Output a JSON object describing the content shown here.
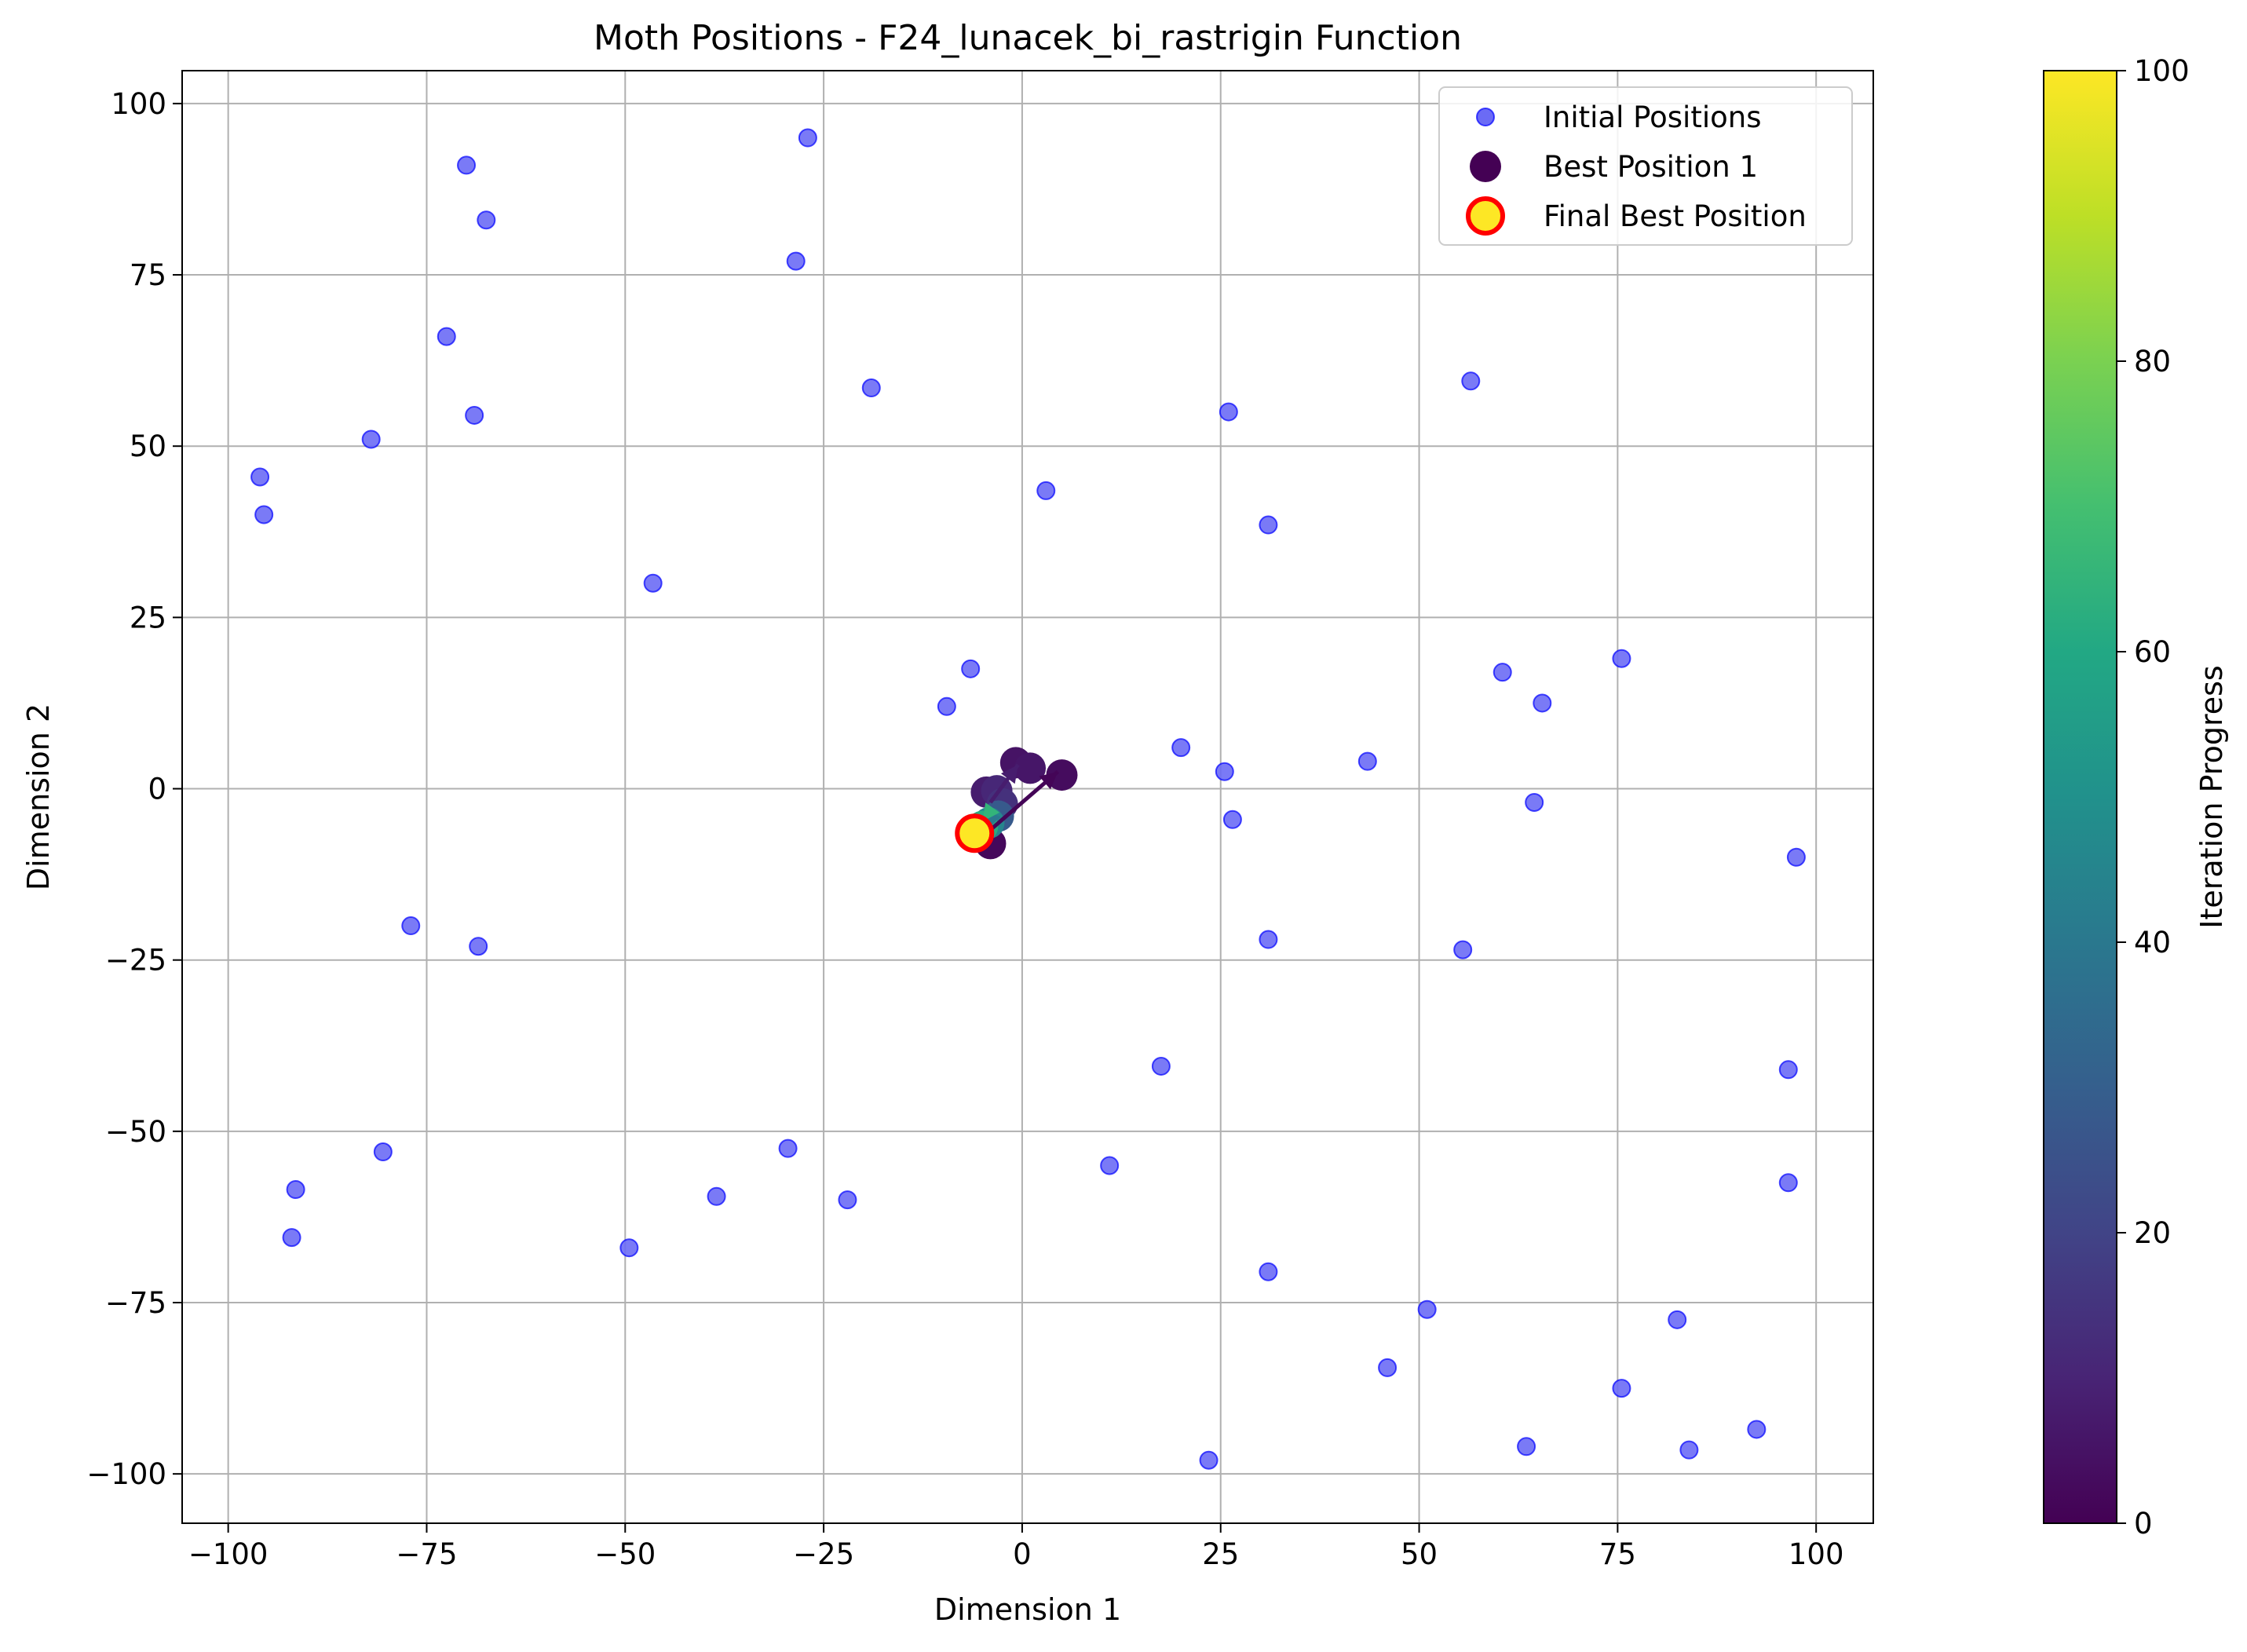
{
  "chart_data": {
    "type": "scatter",
    "title": "Moth Positions - F24_lunacek_bi_rastrigin Function",
    "xlabel": "Dimension 1",
    "ylabel": "Dimension 2",
    "xlim": [
      -105.8,
      107.2
    ],
    "ylim": [
      -107.2,
      104.8
    ],
    "xticks": [
      -100,
      -75,
      -50,
      -25,
      0,
      25,
      50,
      75,
      100
    ],
    "yticks": [
      -100,
      -75,
      -50,
      -25,
      0,
      25,
      50,
      75,
      100
    ],
    "xtick_labels": [
      "−100",
      "−75",
      "−50",
      "−25",
      "0",
      "25",
      "50",
      "75",
      "100"
    ],
    "ytick_labels": [
      "−100",
      "−75",
      "−50",
      "−25",
      "0",
      "25",
      "50",
      "75",
      "100"
    ],
    "grid": true,
    "legend_position": "top-right",
    "series": [
      {
        "name": "Initial Positions",
        "color": "#6b6bf5",
        "points": [
          [
            -27,
            95
          ],
          [
            -70,
            91
          ],
          [
            -67.5,
            83
          ],
          [
            -28.5,
            77
          ],
          [
            -72.5,
            66
          ],
          [
            -69,
            54.5
          ],
          [
            -82,
            51
          ],
          [
            -96,
            45.5
          ],
          [
            -95.5,
            40
          ],
          [
            -19,
            58.5
          ],
          [
            -46.5,
            30
          ],
          [
            3,
            43.5
          ],
          [
            26,
            55
          ],
          [
            31,
            38.5
          ],
          [
            56.5,
            59.5
          ],
          [
            -6.5,
            17.5
          ],
          [
            -9.5,
            12
          ],
          [
            20,
            6
          ],
          [
            25.5,
            2.5
          ],
          [
            26.5,
            -4.5
          ],
          [
            43.5,
            4
          ],
          [
            60.5,
            17
          ],
          [
            65.5,
            12.5
          ],
          [
            75.5,
            19
          ],
          [
            64.5,
            -2
          ],
          [
            97.5,
            -10
          ],
          [
            -77,
            -20
          ],
          [
            -68.5,
            -23
          ],
          [
            31,
            -22
          ],
          [
            55.5,
            -23.5
          ],
          [
            17.5,
            -40.5
          ],
          [
            96.5,
            -41
          ],
          [
            -80.5,
            -53
          ],
          [
            -91.5,
            -58.5
          ],
          [
            -92,
            -65.5
          ],
          [
            -49.5,
            -67
          ],
          [
            -38.5,
            -59.5
          ],
          [
            -29.5,
            -52.5
          ],
          [
            -22,
            -60
          ],
          [
            11,
            -55
          ],
          [
            96.5,
            -57.5
          ],
          [
            31,
            -70.5
          ],
          [
            51,
            -76
          ],
          [
            82.5,
            -77.5
          ],
          [
            46,
            -84.5
          ],
          [
            75.5,
            -87.5
          ],
          [
            63.5,
            -96
          ],
          [
            84,
            -96.5
          ],
          [
            92.5,
            -93.5
          ],
          [
            23.5,
            -98
          ]
        ]
      },
      {
        "name": "Best Position 1",
        "color": "#440154",
        "colorbar_min": 0,
        "colorbar_max": 100,
        "iterations": [
          {
            "x": 5.0,
            "y": 2.0,
            "iter": 3
          },
          {
            "x": -0.8,
            "y": 3.8,
            "iter": 5
          },
          {
            "x": 1.0,
            "y": 3.0,
            "iter": 6
          },
          {
            "x": -4.5,
            "y": -0.5,
            "iter": 8
          },
          {
            "x": -3.2,
            "y": -0.3,
            "iter": 11
          },
          {
            "x": -2.5,
            "y": -2.2,
            "iter": 14
          },
          {
            "x": -4.0,
            "y": -8.0,
            "iter": 2
          },
          {
            "x": -3.0,
            "y": -4.0,
            "iter": 28
          },
          {
            "x": -4.2,
            "y": -5.0,
            "iter": 45
          },
          {
            "x": -5.0,
            "y": -5.5,
            "iter": 62
          }
        ],
        "arrows": [
          {
            "from": [
              -5.5,
              -7.5
            ],
            "to": [
              4.5,
              2.5
            ],
            "iter": 1
          },
          {
            "from": [
              -4.0,
              -2.0
            ],
            "to": [
              -0.5,
              3.5
            ],
            "iter": 8
          },
          {
            "from": [
              -3.5,
              -3.0
            ],
            "to": [
              -4.5,
              -6.0
            ],
            "iter": 40
          },
          {
            "from": [
              -4.2,
              -3.5
            ],
            "to": [
              -5.0,
              -4.8
            ],
            "iter": 65
          }
        ]
      },
      {
        "name": "Final Best Position",
        "fill": "#fde725",
        "edge": "#ff0000",
        "points": [
          [
            -6,
            -6.5
          ]
        ]
      }
    ],
    "colorbar": {
      "label": "Iteration Progress",
      "min": 0,
      "max": 100,
      "ticks": [
        0,
        20,
        40,
        60,
        80,
        100
      ],
      "tick_labels": [
        "0",
        "20",
        "40",
        "60",
        "80",
        "100"
      ],
      "colormap": "viridis"
    }
  }
}
